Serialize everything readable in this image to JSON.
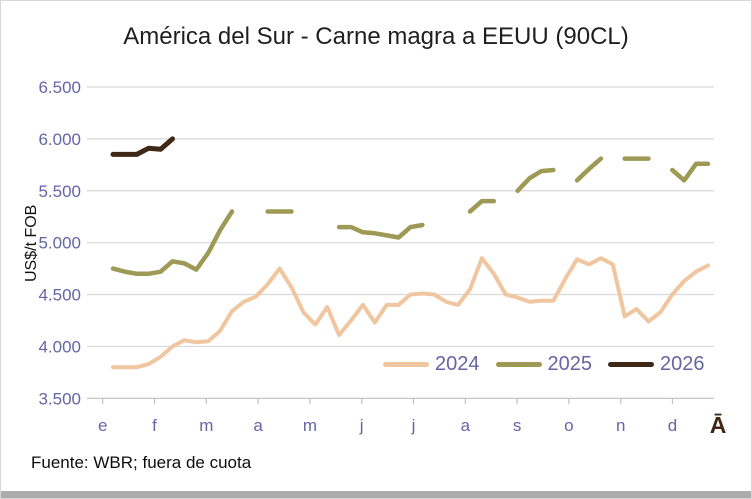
{
  "chart_data": {
    "type": "line",
    "title": "América del Sur - Carne magra a EEUU (90CL)",
    "ylabel": "US$/t FOB",
    "source_note": "Fuente: WBR; fuera de cuota",
    "grid": true,
    "legend_position": "inside-bottom-right",
    "y_axis": {
      "min": 3500,
      "max": 6500,
      "step": 500,
      "tick_labels": [
        "3.500",
        "4.000",
        "4.500",
        "5.000",
        "5.500",
        "6.000",
        "6.500"
      ]
    },
    "x_axis": {
      "unit": "week-of-year",
      "month_labels": [
        "e",
        "f",
        "m",
        "a",
        "m",
        "j",
        "j",
        "a",
        "s",
        "o",
        "n",
        "d"
      ],
      "end_label": "Ā"
    },
    "series": [
      {
        "name": "2024",
        "color": "#f0c6a0",
        "line_width": 4,
        "segments": [
          {
            "start_week": 2,
            "values": [
              3800,
              3800,
              3800,
              3830,
              3900,
              4000,
              4060,
              4040,
              4050,
              4150,
              4340,
              4430,
              4480,
              4600,
              4750,
              4570,
              4330,
              4210,
              4380,
              4110,
              4250,
              4400,
              4230,
              4400,
              4400,
              4500,
              4510,
              4500,
              4430,
              4400,
              4550,
              4850,
              4700,
              4500,
              4470,
              4430,
              4440,
              4440,
              4650,
              4840,
              4790,
              4850,
              4790,
              4290,
              4360,
              4240,
              4330,
              4500,
              4630,
              4720,
              4780
            ]
          }
        ]
      },
      {
        "name": "2025",
        "color": "#9e9a55",
        "line_width": 4.5,
        "segments": [
          {
            "start_week": 2,
            "values": [
              4750,
              4720,
              4700,
              4700,
              4720,
              4820,
              4800,
              4740,
              4900,
              5120,
              5300
            ]
          },
          {
            "start_week": 15,
            "values": [
              5300,
              5300,
              5300
            ]
          },
          {
            "start_week": 21,
            "values": [
              5150,
              5150,
              5100,
              5090,
              5070,
              5050,
              5150,
              5170
            ]
          },
          {
            "start_week": 32,
            "values": [
              5300,
              5400,
              5400
            ]
          },
          {
            "start_week": 36,
            "values": [
              5500,
              5620,
              5690,
              5700
            ]
          },
          {
            "start_week": 41,
            "values": [
              5600,
              5710,
              5810
            ]
          },
          {
            "start_week": 45,
            "values": [
              5810,
              5810,
              5810
            ]
          },
          {
            "start_week": 49,
            "values": [
              5700,
              5600,
              5760,
              5760
            ]
          }
        ]
      },
      {
        "name": "2026",
        "color": "#402817",
        "line_width": 5,
        "segments": [
          {
            "start_week": 2,
            "values": [
              5850,
              5850,
              5850,
              5910,
              5900,
              6000
            ]
          }
        ]
      }
    ]
  },
  "colors": {
    "axis_text": "#6565a5",
    "gridline": "#d9d9d9",
    "axis_line": "#bfbfbf",
    "title_text": "#1f1f1f",
    "end_label_text": "#402817"
  }
}
